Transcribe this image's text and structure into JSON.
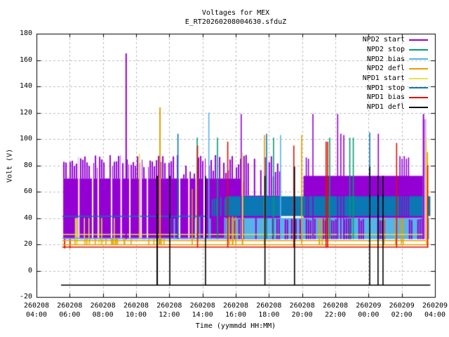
{
  "chart_data": {
    "type": "line",
    "title": "Voltages for MEX",
    "subtitle": "E_RT20260208004630.sfduZ",
    "xlabel": "Time (yymmdd HH:MM)",
    "ylabel": "Volt (V)",
    "x_range_hours": [
      4,
      28
    ],
    "ylim": [
      -20,
      180
    ],
    "grid": true,
    "background": "#ffffff",
    "grid_color": "#bcbcbc",
    "legend_position": "top-right",
    "y_ticks": [
      -20,
      0,
      20,
      40,
      60,
      80,
      100,
      120,
      140,
      160,
      180
    ],
    "x_ticks": [
      {
        "date": "260208",
        "time": "04:00",
        "hour": 4
      },
      {
        "date": "260208",
        "time": "06:00",
        "hour": 6
      },
      {
        "date": "260208",
        "time": "08:00",
        "hour": 8
      },
      {
        "date": "260208",
        "time": "10:00",
        "hour": 10
      },
      {
        "date": "260208",
        "time": "12:00",
        "hour": 12
      },
      {
        "date": "260208",
        "time": "14:00",
        "hour": 14
      },
      {
        "date": "260208",
        "time": "16:00",
        "hour": 16
      },
      {
        "date": "260208",
        "time": "18:00",
        "hour": 18
      },
      {
        "date": "260208",
        "time": "20:00",
        "hour": 20
      },
      {
        "date": "260208",
        "time": "22:00",
        "hour": 22
      },
      {
        "date": "260209",
        "time": "00:00",
        "hour": 24
      },
      {
        "date": "260209",
        "time": "02:00",
        "hour": 26
      },
      {
        "date": "260209",
        "time": "04:00",
        "hour": 28
      }
    ],
    "series": [
      {
        "name": "NPD2 start",
        "color": "#9400D3"
      },
      {
        "name": "NPD2 stop",
        "color": "#009E73"
      },
      {
        "name": "NPD2 bias",
        "color": "#56B4E9"
      },
      {
        "name": "NPD2 defl",
        "color": "#E69F00"
      },
      {
        "name": "NPD1 start",
        "color": "#E6E24A"
      },
      {
        "name": "NPD1 stop",
        "color": "#0B77B5"
      },
      {
        "name": "NPD1 bias",
        "color": "#E01000"
      },
      {
        "name": "NPD1 defl",
        "color": "#000000"
      }
    ],
    "bands": [
      {
        "series": "NPD2 start",
        "t": [
          5.61,
          16.33
        ],
        "v": [
          24,
          70
        ],
        "style": "solid"
      },
      {
        "series": "NPD2 start",
        "t": [
          5.61,
          12.2
        ],
        "v": [
          70,
          88
        ],
        "style": "comb",
        "density": 0.8,
        "jitter": 10,
        "seed": 11
      },
      {
        "series": "NPD2 start",
        "t": [
          12.2,
          16.33
        ],
        "v": [
          70,
          88
        ],
        "style": "comb",
        "density": 0.55,
        "jitter": 16,
        "seed": 12
      },
      {
        "series": "NPD2 start",
        "t": [
          16.33,
          18.7
        ],
        "v": [
          24,
          57
        ],
        "style": "solid"
      },
      {
        "series": "NPD2 start",
        "t": [
          16.33,
          18.7
        ],
        "v": [
          57,
          88
        ],
        "style": "comb",
        "density": 0.4,
        "jitter": 18,
        "seed": 13
      },
      {
        "series": "NPD2 start",
        "t": [
          18.7,
          20.08
        ],
        "v": [
          24,
          40
        ],
        "style": "comb",
        "density": 0.3,
        "jitter": 5,
        "seed": 14
      },
      {
        "series": "NPD2 bias",
        "t": [
          11.5,
          15.4
        ],
        "v": [
          24,
          41
        ],
        "style": "comb",
        "density": 0.22,
        "jitter": 2,
        "seed": 15
      },
      {
        "series": "NPD2 start",
        "t": [
          20.08,
          27.52
        ],
        "v": [
          40,
          72
        ],
        "style": "solid"
      },
      {
        "series": "NPD2 bias",
        "t": [
          15.4,
          27.65
        ],
        "v": [
          24,
          40
        ],
        "style": "solid"
      },
      {
        "series": "NPD2 start",
        "t": [
          15.4,
          27.5
        ],
        "v": [
          24,
          40
        ],
        "style": "comb",
        "density": 0.45,
        "jitter": 2,
        "seed": 16
      },
      {
        "series": "NPD1 stop",
        "t": [
          14.3,
          15.4
        ],
        "v": [
          41.5,
          56.5
        ],
        "style": "comb",
        "density": 0.5,
        "jitter": 3,
        "seed": 17
      },
      {
        "series": "NPD1 stop",
        "t": [
          15.4,
          27.72
        ],
        "v": [
          41.5,
          56.5
        ],
        "style": "solid"
      }
    ],
    "gaps": [
      {
        "t": 6.55,
        "v": [
          24,
          88
        ]
      },
      {
        "t": 7.38,
        "v": [
          24,
          88
        ]
      },
      {
        "t": 7.72,
        "v": [
          24,
          88
        ]
      },
      {
        "t": 8.52,
        "v": [
          24,
          88
        ]
      },
      {
        "t": 9.1,
        "v": [
          24,
          88
        ]
      },
      {
        "t": 9.62,
        "v": [
          24,
          88
        ]
      },
      {
        "t": 10.3,
        "v": [
          24,
          88
        ]
      },
      {
        "t": 10.68,
        "v": [
          24,
          88
        ]
      },
      {
        "t": 12.62,
        "v": [
          24,
          88
        ]
      },
      {
        "t": 13.18,
        "v": [
          24,
          88
        ]
      },
      {
        "t": 13.62,
        "v": [
          24,
          88
        ]
      },
      {
        "t": 14.1,
        "v": [
          24,
          88
        ]
      }
    ],
    "drops": [
      {
        "series": "NPD2 defl",
        "t": [
          5.65,
          12.2
        ],
        "v": [
          19.5,
          24.5
        ],
        "n": 24,
        "seed": 21
      },
      {
        "series": "NPD1 start",
        "t": [
          5.62,
          9.0
        ],
        "v": [
          20,
          40
        ],
        "n": 8,
        "seed": 22
      },
      {
        "series": "NPD1 bias",
        "t": [
          5.62,
          6.2
        ],
        "v": [
          17,
          24
        ],
        "n": 3,
        "seed": 23
      },
      {
        "series": "NPD2 defl",
        "t": [
          15.5,
          16.4
        ],
        "v": [
          20,
          41
        ],
        "n": 5,
        "seed": 24
      },
      {
        "series": "NPD2 defl",
        "t": [
          20.6,
          21.3
        ],
        "v": [
          20,
          40
        ],
        "n": 3,
        "seed": 25
      },
      {
        "series": "NPD2 defl",
        "t": [
          24.9,
          26.3
        ],
        "v": [
          20,
          40
        ],
        "n": 5,
        "seed": 26
      }
    ],
    "hlines": [
      {
        "series": "NPD1 defl",
        "v": -11,
        "t": [
          5.48,
          27.72
        ]
      },
      {
        "series": "NPD1 bias",
        "v": 17.9,
        "t": [
          5.55,
          27.6
        ]
      },
      {
        "series": "NPD2 defl",
        "v": 19.7,
        "t": [
          5.55,
          27.55
        ]
      },
      {
        "series": "NPD2 defl",
        "v": 22.8,
        "t": [
          5.55,
          27.55
        ]
      },
      {
        "series": "NPD2 bias",
        "v": 24.6,
        "t": [
          5.55,
          15.4
        ]
      },
      {
        "series": "NPD1 start",
        "v": 27.5,
        "t": [
          5.6,
          27.5
        ]
      },
      {
        "series": "NPD1 stop",
        "v": 41.3,
        "t": [
          5.55,
          14.3
        ]
      }
    ],
    "spikes": [
      {
        "series": "NPD2 start",
        "t": 9.4,
        "v": [
          24,
          165
        ],
        "w": 2
      },
      {
        "series": "NPD2 start",
        "t": 16.33,
        "v": [
          24,
          119
        ]
      },
      {
        "series": "NPD2 start",
        "t": 20.65,
        "v": [
          24,
          119
        ]
      },
      {
        "series": "NPD2 start",
        "t": 22.14,
        "v": [
          24,
          119
        ]
      },
      {
        "series": "NPD2 start",
        "t": 22.33,
        "v": [
          24,
          104
        ]
      },
      {
        "series": "NPD2 start",
        "t": 22.51,
        "v": [
          24,
          103
        ]
      },
      {
        "series": "NPD2 start",
        "t": 24.59,
        "v": [
          24,
          104
        ]
      },
      {
        "series": "NPD2 start",
        "t": 27.37,
        "v": [
          24,
          115
        ],
        "w": 5,
        "color": "#D9A8EC"
      },
      {
        "series": "NPD2 start",
        "t": 27.31,
        "v": [
          24,
          119
        ],
        "w": 2
      },
      {
        "series": "NPD2 start",
        "t": 20.25,
        "v": [
          40,
          86
        ]
      },
      {
        "series": "NPD2 start",
        "t": 20.38,
        "v": [
          40,
          85
        ]
      },
      {
        "series": "NPD2 start",
        "t": 25.89,
        "v": [
          40,
          87
        ]
      },
      {
        "series": "NPD2 start",
        "t": 26.02,
        "v": [
          40,
          85
        ]
      },
      {
        "series": "NPD2 start",
        "t": 26.15,
        "v": [
          40,
          87
        ]
      },
      {
        "series": "NPD2 start",
        "t": 26.28,
        "v": [
          40,
          85
        ]
      },
      {
        "series": "NPD2 start",
        "t": 26.41,
        "v": [
          40,
          86
        ]
      },
      {
        "series": "NPD2 stop",
        "t": 13.68,
        "v": [
          24,
          101
        ]
      },
      {
        "series": "NPD2 stop",
        "t": 14.9,
        "v": [
          24,
          101
        ]
      },
      {
        "series": "NPD2 stop",
        "t": 18.28,
        "v": [
          24,
          101
        ]
      },
      {
        "series": "NPD2 stop",
        "t": 21.66,
        "v": [
          24,
          101
        ]
      },
      {
        "series": "NPD2 stop",
        "t": 22.87,
        "v": [
          24,
          101
        ]
      },
      {
        "series": "NPD2 stop",
        "t": 23.08,
        "v": [
          24,
          101
        ]
      },
      {
        "series": "NPD2 bias",
        "t": 14.38,
        "v": [
          24,
          120
        ]
      },
      {
        "series": "NPD2 bias",
        "t": 18.7,
        "v": [
          24,
          103
        ]
      },
      {
        "series": "NPD2 defl",
        "t": 11.44,
        "v": [
          20,
          124
        ],
        "w": 2
      },
      {
        "series": "NPD2 defl",
        "t": 13.38,
        "v": [
          20,
          62
        ]
      },
      {
        "series": "NPD2 defl",
        "t": 16.42,
        "v": [
          20,
          68
        ]
      },
      {
        "series": "NPD2 defl",
        "t": 17.73,
        "v": [
          20,
          103
        ]
      },
      {
        "series": "NPD2 defl",
        "t": 19.97,
        "v": [
          20,
          103
        ]
      },
      {
        "series": "NPD2 defl",
        "t": 27.52,
        "v": [
          20,
          90
        ],
        "w": 3
      },
      {
        "series": "NPD1 start",
        "t": 10.2,
        "v": [
          24,
          89
        ]
      },
      {
        "series": "NPD1 start",
        "t": 16.4,
        "v": [
          24,
          90
        ]
      },
      {
        "series": "NPD1 start",
        "t": 27.48,
        "v": [
          20,
          101
        ]
      },
      {
        "series": "NPD1 stop",
        "t": 12.52,
        "v": [
          24,
          104
        ]
      },
      {
        "series": "NPD1 stop",
        "t": 17.86,
        "v": [
          24,
          104
        ]
      },
      {
        "series": "NPD1 stop",
        "t": 24.07,
        "v": [
          24,
          105
        ]
      },
      {
        "series": "NPD1 bias",
        "t": 13.7,
        "v": [
          17.5,
          95
        ]
      },
      {
        "series": "NPD1 bias",
        "t": 15.52,
        "v": [
          17.5,
          98
        ]
      },
      {
        "series": "NPD1 bias",
        "t": 19.5,
        "v": [
          17.5,
          95
        ]
      },
      {
        "series": "NPD1 bias",
        "t": 21.44,
        "v": [
          17.5,
          98
        ]
      },
      {
        "series": "NPD1 bias",
        "t": 21.54,
        "v": [
          17.5,
          98
        ]
      },
      {
        "series": "NPD1 bias",
        "t": 25.69,
        "v": [
          17.5,
          97
        ]
      },
      {
        "series": "NPD1 bias",
        "t": 27.56,
        "v": [
          17.5,
          80
        ]
      },
      {
        "series": "NPD1 defl",
        "t": 11.27,
        "v": [
          -11,
          72
        ],
        "w": 2
      },
      {
        "series": "NPD1 defl",
        "t": 12.03,
        "v": [
          -11,
          72
        ]
      },
      {
        "series": "NPD1 defl",
        "t": 14.18,
        "v": [
          -11,
          72
        ]
      },
      {
        "series": "NPD1 defl",
        "t": 17.76,
        "v": [
          -11,
          72
        ]
      },
      {
        "series": "NPD1 defl",
        "t": 19.54,
        "v": [
          -11,
          79
        ]
      },
      {
        "series": "NPD1 defl",
        "t": 24.07,
        "v": [
          -11,
          79
        ]
      },
      {
        "series": "NPD1 defl",
        "t": 24.57,
        "v": [
          -11,
          72
        ]
      },
      {
        "series": "NPD1 defl",
        "t": 24.87,
        "v": [
          -11,
          72
        ]
      }
    ]
  }
}
